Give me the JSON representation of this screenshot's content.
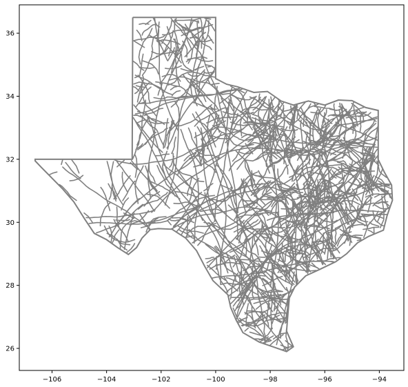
{
  "chart_data": {
    "type": "map",
    "description_visible": false,
    "title": "",
    "xlabel": "",
    "ylabel": "",
    "xlim": [
      -107.2,
      -93.1
    ],
    "ylim": [
      25.3,
      36.9
    ],
    "x_ticks": [
      -106,
      -104,
      -102,
      -100,
      -98,
      -96,
      -94
    ],
    "x_tick_labels": [
      "−106",
      "−104",
      "−102",
      "−100",
      "−98",
      "−96",
      "−94"
    ],
    "y_ticks": [
      26,
      28,
      30,
      32,
      34,
      36
    ],
    "y_tick_labels": [
      "26",
      "28",
      "30",
      "32",
      "34",
      "36"
    ],
    "grid": false,
    "line_color": "#808080",
    "axes_color": "#000000",
    "outline": [
      [
        -103.04,
        36.5
      ],
      [
        -100.0,
        36.5
      ],
      [
        -100.0,
        34.56
      ],
      [
        -99.6,
        34.38
      ],
      [
        -99.2,
        34.3
      ],
      [
        -98.6,
        34.12
      ],
      [
        -98.1,
        34.15
      ],
      [
        -97.6,
        33.85
      ],
      [
        -97.15,
        33.72
      ],
      [
        -96.6,
        33.85
      ],
      [
        -96.0,
        33.72
      ],
      [
        -95.5,
        33.88
      ],
      [
        -95.0,
        33.86
      ],
      [
        -94.5,
        33.64
      ],
      [
        -94.04,
        33.55
      ],
      [
        -94.04,
        31.99
      ],
      [
        -93.82,
        31.6
      ],
      [
        -93.55,
        31.18
      ],
      [
        -93.52,
        30.7
      ],
      [
        -93.72,
        30.2
      ],
      [
        -93.85,
        29.75
      ],
      [
        -94.4,
        29.55
      ],
      [
        -94.8,
        29.35
      ],
      [
        -95.2,
        29.0
      ],
      [
        -95.6,
        28.75
      ],
      [
        -96.2,
        28.5
      ],
      [
        -96.7,
        28.3
      ],
      [
        -97.1,
        27.95
      ],
      [
        -97.3,
        27.6
      ],
      [
        -97.35,
        27.1
      ],
      [
        -97.4,
        26.55
      ],
      [
        -97.15,
        26.05
      ],
      [
        -97.4,
        25.9
      ],
      [
        -97.9,
        26.05
      ],
      [
        -98.4,
        26.2
      ],
      [
        -99.0,
        26.5
      ],
      [
        -99.25,
        26.9
      ],
      [
        -99.45,
        27.3
      ],
      [
        -99.55,
        27.7
      ],
      [
        -100.1,
        28.15
      ],
      [
        -100.4,
        28.6
      ],
      [
        -100.7,
        29.1
      ],
      [
        -101.1,
        29.5
      ],
      [
        -101.6,
        29.78
      ],
      [
        -102.1,
        29.8
      ],
      [
        -102.4,
        29.77
      ],
      [
        -102.7,
        29.5
      ],
      [
        -102.9,
        29.2
      ],
      [
        -103.2,
        28.98
      ],
      [
        -103.6,
        29.2
      ],
      [
        -104.0,
        29.45
      ],
      [
        -104.45,
        29.65
      ],
      [
        -104.8,
        30.1
      ],
      [
        -105.2,
        30.65
      ],
      [
        -105.6,
        31.05
      ],
      [
        -106.0,
        31.4
      ],
      [
        -106.4,
        31.75
      ],
      [
        -106.62,
        31.95
      ],
      [
        -106.62,
        32.0
      ],
      [
        -103.06,
        32.0
      ],
      [
        -103.04,
        36.5
      ]
    ]
  }
}
